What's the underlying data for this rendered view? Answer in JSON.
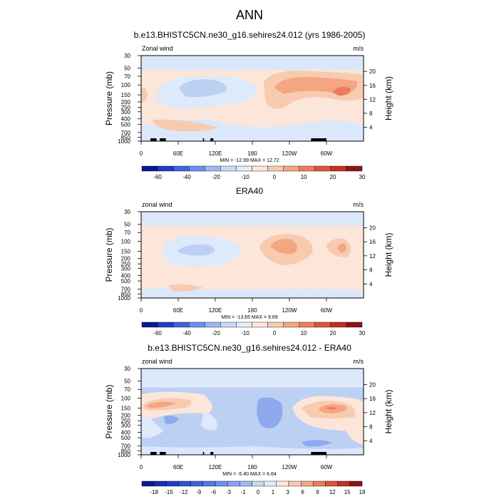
{
  "figure_title": "ANN",
  "chart_data": [
    {
      "type": "contour",
      "title": "b.e13.BHISTC5CN.ne30_g16.sehires24.012 (yrs 1986-2005)",
      "variable_label": "Zonal wind",
      "units_label": "m/s",
      "ylabel": "Pressure (mb)",
      "y2label": "Height (km)",
      "x_ticks": [
        "0",
        "60E",
        "120E",
        "180",
        "120W",
        "60W"
      ],
      "x_tick_lons": [
        0,
        60,
        120,
        180,
        240,
        300
      ],
      "xlim": [
        0,
        360
      ],
      "y_ticks": [
        "30",
        "50",
        "70",
        "100",
        "150",
        "200",
        "250",
        "300",
        "400",
        "500",
        "700",
        "850",
        "1000"
      ],
      "y_tick_values": [
        30,
        50,
        70,
        100,
        150,
        200,
        250,
        300,
        400,
        500,
        700,
        850,
        1000
      ],
      "ylim": [
        1000,
        30
      ],
      "height_ticks": [
        "20",
        "16",
        "12",
        "8",
        "4"
      ],
      "height_tick_values": [
        20,
        16,
        12,
        8,
        4
      ],
      "minmax_text": "MIN = -12.99  MAX =  12.72",
      "min": -12.99,
      "max": 12.72,
      "colorbar_labels": [
        "-60",
        "-40",
        "-20",
        "-10",
        "0",
        "10",
        "20",
        "30"
      ],
      "colorbar_colors": [
        "#0a1a8c",
        "#1f3dc8",
        "#3e63e0",
        "#6d8ff0",
        "#9fb6f4",
        "#c9d9f6",
        "#e2ecfa",
        "#fce6da",
        "#f8cbb0",
        "#f4a582",
        "#ec7d5a",
        "#e0533b",
        "#c2311f",
        "#8e1414"
      ],
      "fill_levels": [
        {
          "level": "-20 to -10",
          "color": "#bcd0f4"
        },
        {
          "level": "-10 to 0",
          "color": "#deeafb"
        },
        {
          "level": "0 to 10",
          "color": "#fce6da"
        },
        {
          "level": "10 to 20",
          "color": "#f8cbb0"
        },
        {
          "level": "20 to 30",
          "color": "#f4a582"
        },
        {
          "level": "30 to 40",
          "color": "#ec7d5a"
        }
      ],
      "topography": [
        [
          15,
          25
        ],
        [
          30,
          40
        ],
        [
          100,
          102
        ],
        [
          112,
          117
        ],
        [
          275,
          300
        ]
      ]
    },
    {
      "type": "contour",
      "title": "ERA40",
      "variable_label": "zonal wind",
      "units_label": "m/s",
      "ylabel": "Pressure (mb)",
      "y2label": "Height (km)",
      "x_ticks": [
        "0",
        "60E",
        "120E",
        "180",
        "120W",
        "60W"
      ],
      "x_tick_lons": [
        0,
        60,
        120,
        180,
        240,
        300
      ],
      "xlim": [
        0,
        360
      ],
      "y_ticks": [
        "30",
        "50",
        "70",
        "100",
        "150",
        "200",
        "250",
        "300",
        "400",
        "500",
        "700",
        "850",
        "1000"
      ],
      "y_tick_values": [
        30,
        50,
        70,
        100,
        150,
        200,
        250,
        300,
        400,
        500,
        700,
        850,
        1000
      ],
      "ylim": [
        1000,
        30
      ],
      "height_ticks": [
        "20",
        "16",
        "12",
        "8",
        "4"
      ],
      "height_tick_values": [
        20,
        16,
        12,
        8,
        4
      ],
      "minmax_text": "MIN = -13.65  MAX =   9.69",
      "min": -13.65,
      "max": 9.69,
      "colorbar_labels": [
        "-60",
        "-40",
        "-20",
        "-10",
        "0",
        "10",
        "20",
        "30"
      ],
      "colorbar_colors": [
        "#0a1a8c",
        "#1f3dc8",
        "#3e63e0",
        "#6d8ff0",
        "#9fb6f4",
        "#c9d9f6",
        "#e2ecfa",
        "#fce6da",
        "#f8cbb0",
        "#f4a582",
        "#ec7d5a",
        "#e0533b",
        "#c2311f",
        "#8e1414"
      ],
      "topography": []
    },
    {
      "type": "contour",
      "title": "b.e13.BHISTC5CN.ne30_g16.sehires24.012 - ERA40",
      "variable_label": "zonal wind",
      "units_label": "m/s",
      "ylabel": "Pressure (mb)",
      "y2label": "Height (km)",
      "x_ticks": [
        "0",
        "60E",
        "120E",
        "180",
        "120W",
        "60W"
      ],
      "x_tick_lons": [
        0,
        60,
        120,
        180,
        240,
        300
      ],
      "xlim": [
        0,
        360
      ],
      "y_ticks": [
        "30",
        "50",
        "70",
        "100",
        "150",
        "200",
        "250",
        "300",
        "400",
        "500",
        "700",
        "850",
        "1000"
      ],
      "y_tick_values": [
        30,
        50,
        70,
        100,
        150,
        200,
        250,
        300,
        400,
        500,
        700,
        850,
        1000
      ],
      "ylim": [
        1000,
        30
      ],
      "height_ticks": [
        "20",
        "16",
        "12",
        "8",
        "4"
      ],
      "height_tick_values": [
        20,
        16,
        12,
        8,
        4
      ],
      "minmax_text": "MIN =  -5.40  MAX =   6.64",
      "min": -5.4,
      "max": 6.64,
      "colorbar_labels": [
        "-18",
        "-15",
        "-12",
        "-9",
        "-6",
        "-3",
        "-1",
        "0",
        "1",
        "3",
        "6",
        "9",
        "12",
        "15",
        "18"
      ],
      "colorbar_colors": [
        "#0a1a8c",
        "#172bb0",
        "#1f3dc8",
        "#2f50d8",
        "#3e63e0",
        "#5578e8",
        "#6d8ff0",
        "#86a3f2",
        "#9fb6f4",
        "#c9d9f6",
        "#e2ecfa",
        "#fce6da",
        "#f8cbb0",
        "#f4a582",
        "#ec7d5a",
        "#e0533b",
        "#c2311f",
        "#8e1414"
      ],
      "topography": [
        [
          15,
          25
        ],
        [
          30,
          40
        ],
        [
          100,
          102
        ],
        [
          112,
          117
        ],
        [
          275,
          300
        ]
      ]
    }
  ]
}
